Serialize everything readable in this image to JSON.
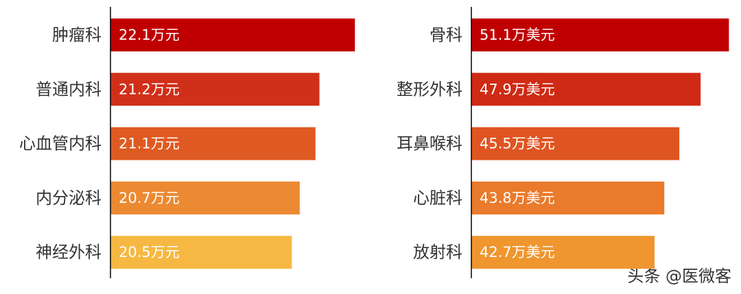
{
  "chart_data": [
    {
      "type": "bar",
      "orientation": "horizontal",
      "categories": [
        "肿瘤科",
        "普通内科",
        "心血管内科",
        "内分泌科",
        "神经外科"
      ],
      "values": [
        22.1,
        21.2,
        21.1,
        20.7,
        20.5
      ],
      "value_labels": [
        "22.1万元",
        "21.2万元",
        "21.1万元",
        "20.7万元",
        "20.5万元"
      ],
      "colors": [
        "#c00000",
        "#d0301a",
        "#df5a22",
        "#eb8a32",
        "#f6b842"
      ],
      "xlim": [
        15.9,
        23
      ]
    },
    {
      "type": "bar",
      "orientation": "horizontal",
      "categories": [
        "骨科",
        "整形外科",
        "耳鼻喉科",
        "心脏科",
        "放射科"
      ],
      "values": [
        51.1,
        47.9,
        45.5,
        43.8,
        42.7
      ],
      "value_labels": [
        "51.1万美元",
        "47.9万美元",
        "45.5万美元",
        "43.8万美元",
        "42.7万美元"
      ],
      "colors": [
        "#c00000",
        "#cf2a14",
        "#df5522",
        "#ea7a2c",
        "#ef962f"
      ],
      "xlim": [
        22,
        52
      ]
    }
  ],
  "watermark": "头条 @医微客"
}
